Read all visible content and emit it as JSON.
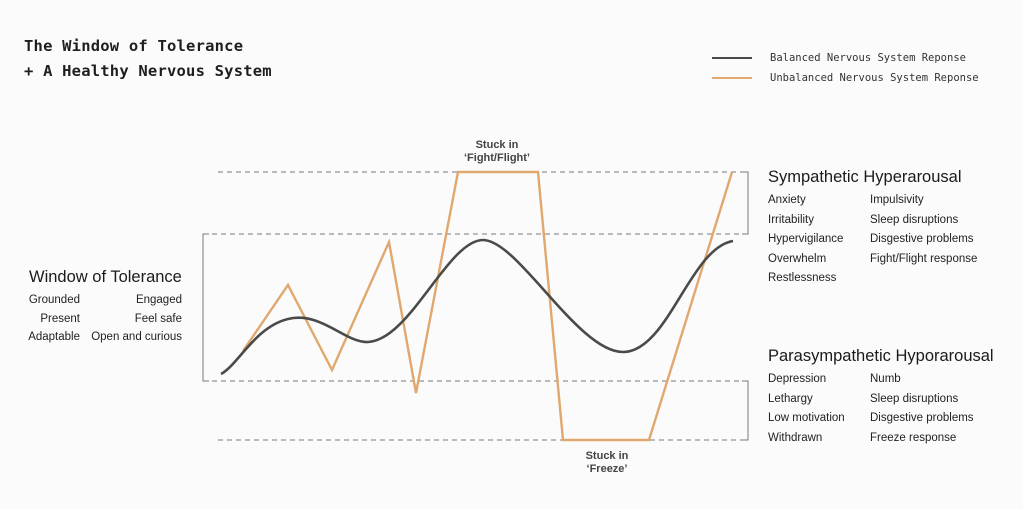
{
  "title": {
    "line1": "The Window of Tolerance",
    "line2": "+ A Healthy Nervous System"
  },
  "legend": [
    {
      "label": "Balanced Nervous System Reponse",
      "color": "#4a4a48",
      "series": "balanced"
    },
    {
      "label": "Unbalanced Nervous System Reponse",
      "color": "#e0a86e",
      "series": "unbalanced"
    }
  ],
  "window_of_tolerance": {
    "title": "Window of Tolerance",
    "left_items": [
      "Grounded",
      "Present",
      "Adaptable"
    ],
    "right_items": [
      "Engaged",
      "Feel safe",
      "Open and curious"
    ]
  },
  "sympathetic": {
    "title": "Sympathetic Hyperarousal",
    "left_items": [
      "Anxiety",
      "Irritability",
      "Hypervigilance",
      "Overwhelm",
      "Restlessness"
    ],
    "right_items": [
      "Impulsivity",
      "Sleep disruptions",
      "Disgestive problems",
      "Fight/Flight response"
    ]
  },
  "parasympathetic": {
    "title": "Parasympathetic Hyporarousal",
    "left_items": [
      "Depression",
      "Lethargy",
      "Low motivation",
      "Withdrawn"
    ],
    "right_items": [
      "Numb",
      "Sleep disruptions",
      "Disgestive problems",
      "Freeze response"
    ]
  },
  "annotations": {
    "fight_flight": {
      "line1": "Stuck in",
      "line2": "‘Fight/Flight’"
    },
    "freeze": {
      "line1": "Stuck in",
      "line2": "‘Freeze’"
    }
  },
  "colors": {
    "balanced": "#4a4a48",
    "unbalanced": "#e0a86e",
    "guides": "#7a7a7a"
  }
}
